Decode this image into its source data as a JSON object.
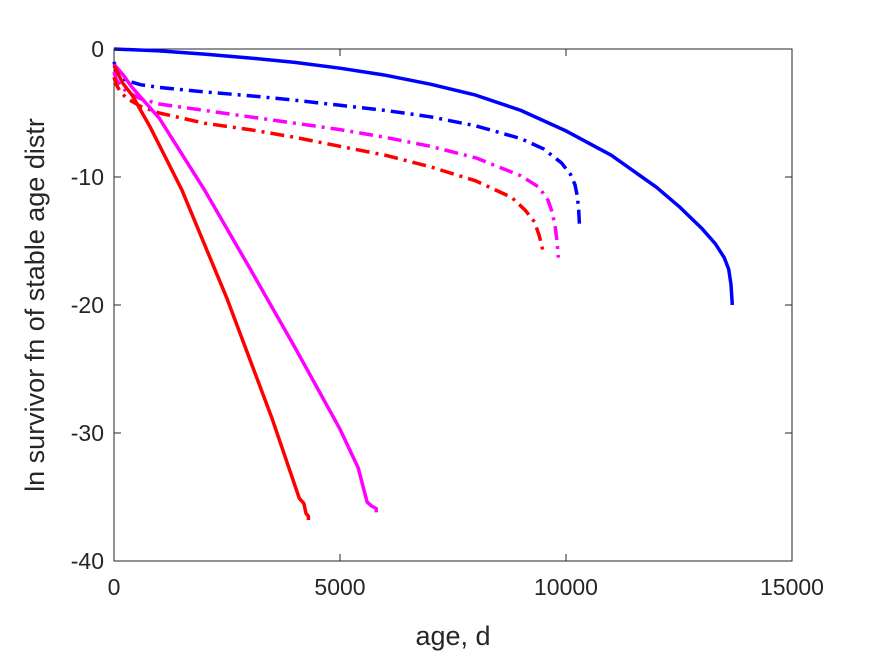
{
  "chart_data": {
    "type": "line",
    "title": "",
    "xlabel": "age, d",
    "ylabel": "ln survivor fn of stable age distr",
    "xlim": [
      0,
      15000
    ],
    "ylim": [
      -40,
      0
    ],
    "xticks": [
      0,
      5000,
      10000,
      15000
    ],
    "yticks": [
      -40,
      -30,
      -20,
      -10,
      0
    ],
    "xtick_labels": [
      "0",
      "5000",
      "10000",
      "15000"
    ],
    "ytick_labels": [
      "-40",
      "-30",
      "-20",
      "-10",
      "0"
    ],
    "grid": false,
    "legend": "none",
    "series": [
      {
        "color": "#0000ff",
        "style": "solid",
        "x": [
          0,
          1000,
          2000,
          3000,
          4000,
          5000,
          6000,
          7000,
          8000,
          9000,
          10000,
          11000,
          12000,
          12500,
          13000,
          13300,
          13500,
          13600,
          13650,
          13680
        ],
        "y": [
          0,
          -0.15,
          -0.4,
          -0.7,
          -1.05,
          -1.5,
          -2.05,
          -2.75,
          -3.6,
          -4.8,
          -6.4,
          -8.3,
          -10.8,
          -12.3,
          -14.0,
          -15.2,
          -16.3,
          -17.2,
          -18.4,
          -20.0
        ]
      },
      {
        "color": "#0000ff",
        "style": "dashdot",
        "x": [
          0,
          50,
          150,
          300,
          600,
          1000,
          2000,
          3000,
          4000,
          5000,
          6000,
          7000,
          8000,
          9000,
          9500,
          9900,
          10100,
          10200,
          10250,
          10280,
          10300
        ],
        "y": [
          -1.0,
          -1.7,
          -2.2,
          -2.5,
          -2.8,
          -3.0,
          -3.35,
          -3.65,
          -4.0,
          -4.4,
          -4.8,
          -5.3,
          -6.0,
          -7.0,
          -7.8,
          -8.9,
          -9.8,
          -10.6,
          -11.5,
          -12.6,
          -14.0
        ]
      },
      {
        "color": "#ff00ff",
        "style": "dashdot",
        "x": [
          0,
          50,
          150,
          300,
          600,
          1000,
          2000,
          3000,
          4000,
          5000,
          6000,
          7000,
          8000,
          9000,
          9400,
          9600,
          9700,
          9760,
          9800,
          9830
        ],
        "y": [
          -1.8,
          -2.4,
          -2.9,
          -3.4,
          -3.9,
          -4.3,
          -4.8,
          -5.3,
          -5.8,
          -6.3,
          -6.9,
          -7.6,
          -8.5,
          -9.9,
          -10.8,
          -11.8,
          -12.8,
          -13.9,
          -15.0,
          -16.3
        ]
      },
      {
        "color": "#ff0000",
        "style": "dashdot",
        "x": [
          0,
          50,
          150,
          300,
          600,
          1000,
          2000,
          3000,
          4000,
          5000,
          6000,
          7000,
          8000,
          8800,
          9100,
          9300,
          9400,
          9460,
          9500
        ],
        "y": [
          -2.2,
          -2.8,
          -3.4,
          -3.9,
          -4.5,
          -5.0,
          -5.8,
          -6.3,
          -6.9,
          -7.6,
          -8.3,
          -9.2,
          -10.3,
          -11.6,
          -12.6,
          -13.5,
          -14.5,
          -15.3,
          -16.0
        ]
      },
      {
        "color": "#ff00ff",
        "style": "solid",
        "x": [
          0,
          200,
          400,
          600,
          1000,
          2000,
          3000,
          4000,
          5000,
          5400,
          5600,
          5700,
          5800,
          5800
        ],
        "y": [
          -1.2,
          -2.0,
          -3.0,
          -3.8,
          -5.4,
          -11.0,
          -17.1,
          -23.3,
          -29.7,
          -32.7,
          -35.4,
          -35.7,
          -35.9,
          -36.2
        ]
      },
      {
        "color": "#ff0000",
        "style": "solid",
        "x": [
          0,
          100,
          200,
          400,
          800,
          1500,
          2500,
          3500,
          4100,
          4200,
          4250,
          4300,
          4300
        ],
        "y": [
          -1.3,
          -2.0,
          -2.7,
          -3.6,
          -6.1,
          -11.0,
          -19.5,
          -28.9,
          -35.1,
          -35.5,
          -36.3,
          -36.5,
          -36.8
        ]
      }
    ]
  }
}
